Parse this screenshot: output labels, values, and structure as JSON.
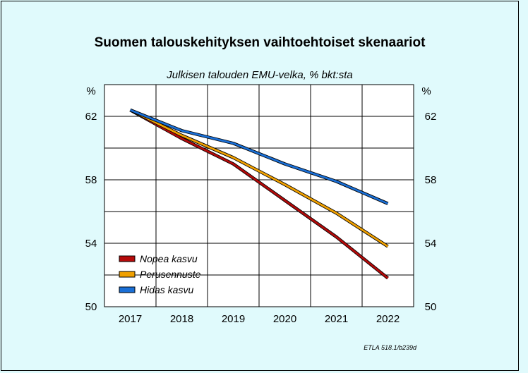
{
  "chart_data": {
    "type": "line",
    "title": "Suomen talouskehityksen vaihtoehtoiset skenaariot",
    "subtitle": "Julkisen talouden EMU-velka, % bkt:sta",
    "unit_label": "%",
    "x": [
      "2017",
      "2018",
      "2019",
      "2020",
      "2021",
      "2022"
    ],
    "ylim": [
      50,
      64
    ],
    "yticks": [
      "62",
      "58",
      "54",
      "50"
    ],
    "grid": true,
    "legend_position": "bottom-left",
    "series": [
      {
        "name": "Nopea kasvu",
        "color": "#b50a0a",
        "values": [
          62.4,
          60.6,
          59.0,
          56.7,
          54.4,
          51.8
        ]
      },
      {
        "name": "Perusennuste",
        "color": "#f0a000",
        "values": [
          62.4,
          60.8,
          59.4,
          57.7,
          55.9,
          53.8
        ]
      },
      {
        "name": "Hidas kasvu",
        "color": "#1a6fd6",
        "values": [
          62.4,
          61.1,
          60.3,
          59.0,
          57.9,
          56.5
        ]
      }
    ],
    "source_note": "ETLA 518.1/b239d"
  }
}
